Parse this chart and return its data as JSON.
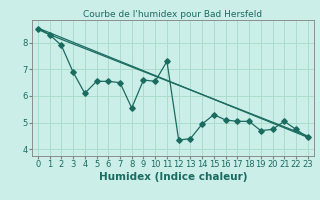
{
  "title": "Courbe de l'humidex pour Bad Hersfeld",
  "xlabel": "Humidex (Indice chaleur)",
  "bg_color": "#cceee8",
  "line_color": "#1a6b60",
  "grid_color": "#aaddcc",
  "x_data": [
    0,
    1,
    2,
    3,
    4,
    5,
    6,
    7,
    8,
    9,
    10,
    11,
    12,
    13,
    14,
    15,
    16,
    17,
    18,
    19,
    20,
    21,
    22,
    23
  ],
  "y_data": [
    8.5,
    8.3,
    7.9,
    6.9,
    6.1,
    6.55,
    6.55,
    6.5,
    5.55,
    6.6,
    6.55,
    7.3,
    4.35,
    4.4,
    4.95,
    5.3,
    5.1,
    5.05,
    5.05,
    4.7,
    4.75,
    5.05,
    4.75,
    4.45
  ],
  "trend_line_x": [
    0,
    23
  ],
  "trend_line_y": [
    8.55,
    4.45
  ],
  "extra_line_x": [
    0,
    1,
    23
  ],
  "extra_line_y": [
    8.55,
    8.3,
    4.5
  ],
  "xlim": [
    -0.5,
    23.5
  ],
  "ylim": [
    3.75,
    8.85
  ],
  "yticks": [
    4,
    5,
    6,
    7,
    8
  ],
  "xticks": [
    0,
    1,
    2,
    3,
    4,
    5,
    6,
    7,
    8,
    9,
    10,
    11,
    12,
    13,
    14,
    15,
    16,
    17,
    18,
    19,
    20,
    21,
    22,
    23
  ],
  "xtick_labels": [
    "0",
    "1",
    "2",
    "3",
    "4",
    "5",
    "6",
    "7",
    "8",
    "9",
    "10",
    "11",
    "12",
    "13",
    "14",
    "15",
    "16",
    "17",
    "18",
    "19",
    "20",
    "21",
    "22",
    "23"
  ],
  "marker_size": 2.8,
  "line_width": 0.9,
  "xlabel_fontsize": 7.5,
  "tick_fontsize": 6.0,
  "title_fontsize": 6.5
}
